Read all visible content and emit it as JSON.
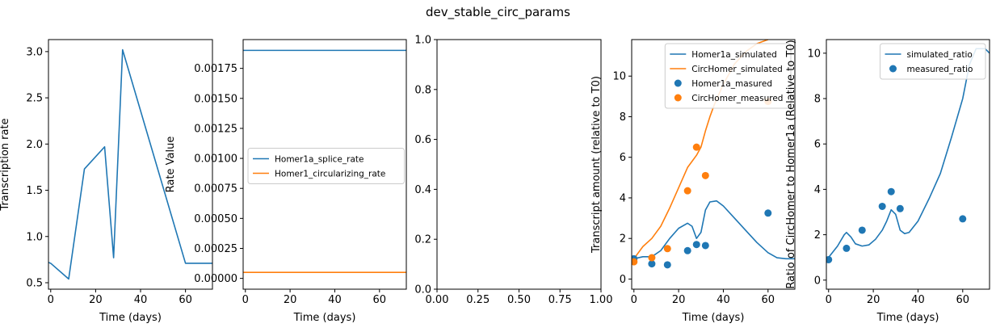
{
  "figure_title": "dev_stable_circ_params",
  "colors": {
    "blue": "#1f77b4",
    "orange": "#ff7f0e",
    "axis": "#000000"
  },
  "chart_data": [
    {
      "type": "line",
      "xlabel": "Time (days)",
      "ylabel": "Transcription rate",
      "xlim": [
        -1,
        72
      ],
      "ylim": [
        0.43,
        3.13
      ],
      "xticks": [
        0,
        20,
        40,
        60
      ],
      "yticks": [
        0.5,
        1.0,
        1.5,
        2.0,
        2.5,
        3.0
      ],
      "ytick_labels": [
        "0.5",
        "1.0",
        "1.5",
        "2.0",
        "2.5",
        "3.0"
      ],
      "series": [
        {
          "color": "#1f77b4",
          "x": [
            -1,
            0,
            8,
            15,
            24,
            28,
            32,
            60,
            72
          ],
          "y": [
            0.72,
            0.71,
            0.54,
            1.73,
            1.97,
            0.77,
            3.02,
            0.71,
            0.71
          ]
        }
      ]
    },
    {
      "type": "line",
      "xlabel": "Time (days)",
      "ylabel": "Rate Value",
      "xlim": [
        -1,
        72
      ],
      "ylim": [
        -9e-05,
        0.00199
      ],
      "xticks": [
        0,
        20,
        40,
        60
      ],
      "yticks": [
        0.0,
        0.00025,
        0.0005,
        0.00075,
        0.001,
        0.00125,
        0.0015,
        0.00175
      ],
      "ytick_labels": [
        "0.00000",
        "0.00025",
        "0.00050",
        "0.00075",
        "0.00100",
        "0.00125",
        "0.00150",
        "0.00175"
      ],
      "legend_position": "center",
      "series": [
        {
          "name": "Homer1a_splice_rate",
          "color": "#1f77b4",
          "x": [
            -1,
            72
          ],
          "y": [
            0.0019,
            0.0019
          ]
        },
        {
          "name": "Homer1_circularizing_rate",
          "color": "#ff7f0e",
          "x": [
            -1,
            72
          ],
          "y": [
            5e-05,
            5e-05
          ]
        }
      ]
    },
    {
      "type": "line",
      "xlabel": "",
      "ylabel": "",
      "xlim": [
        0,
        1
      ],
      "ylim": [
        0,
        1
      ],
      "xticks": [
        0,
        0.25,
        0.5,
        0.75,
        1.0
      ],
      "xtick_labels": [
        "0.00",
        "0.25",
        "0.50",
        "0.75",
        "1.00"
      ],
      "yticks": [
        0,
        0.2,
        0.4,
        0.6,
        0.8,
        1.0
      ],
      "ytick_labels": [
        "0.0",
        "0.2",
        "0.4",
        "0.6",
        "0.8",
        "1.0"
      ],
      "series": []
    },
    {
      "type": "line",
      "xlabel": "Time (days)",
      "ylabel": "Transcript amount (relative to T0)",
      "xlim": [
        -1,
        72
      ],
      "ylim": [
        -0.5,
        11.8
      ],
      "xticks": [
        0,
        20,
        40,
        60
      ],
      "yticks": [
        0,
        2,
        4,
        6,
        8,
        10
      ],
      "legend_position": "top-right",
      "series": [
        {
          "name": "Homer1a_simulated",
          "color": "#1f77b4",
          "kind": "line",
          "x": [
            0,
            4,
            8,
            12,
            16,
            20,
            24,
            26,
            28,
            30,
            32,
            34,
            37,
            40,
            45,
            50,
            55,
            60,
            64,
            68,
            72
          ],
          "y": [
            1.0,
            1.1,
            1.1,
            1.4,
            2.0,
            2.5,
            2.75,
            2.6,
            2.0,
            2.3,
            3.4,
            3.8,
            3.85,
            3.6,
            3.0,
            2.4,
            1.8,
            1.3,
            1.05,
            1.0,
            1.0
          ]
        },
        {
          "name": "CircHomer_simulated",
          "color": "#ff7f0e",
          "kind": "line",
          "x": [
            0,
            4,
            8,
            12,
            16,
            20,
            24,
            26,
            28,
            30,
            32,
            34,
            36,
            40,
            45,
            50,
            55,
            60
          ],
          "y": [
            1.0,
            1.6,
            2.0,
            2.6,
            3.5,
            4.5,
            5.5,
            5.8,
            6.1,
            6.5,
            7.3,
            8.0,
            8.6,
            9.6,
            10.6,
            11.2,
            11.6,
            11.8
          ]
        },
        {
          "name": "Homer1a_masured",
          "color": "#1f77b4",
          "kind": "scatter",
          "x": [
            0,
            8,
            15,
            24,
            28,
            32,
            60
          ],
          "y": [
            1.0,
            0.75,
            0.7,
            1.4,
            1.7,
            1.65,
            3.25
          ]
        },
        {
          "name": "CircHomer_measured",
          "color": "#ff7f0e",
          "kind": "scatter",
          "x": [
            0,
            8,
            15,
            24,
            28,
            32,
            60
          ],
          "y": [
            0.85,
            1.05,
            1.5,
            4.35,
            6.5,
            5.1,
            8.75
          ]
        }
      ]
    },
    {
      "type": "line",
      "xlabel": "Time (days)",
      "ylabel": "Ratio of CircHomer to Homer1a (Relative to T0)",
      "xlim": [
        -1,
        72
      ],
      "ylim": [
        -0.4,
        10.6
      ],
      "xticks": [
        0,
        20,
        40,
        60
      ],
      "yticks": [
        0,
        2,
        4,
        6,
        8,
        10
      ],
      "legend_position": "top-right",
      "series": [
        {
          "name": "simulated_ratio",
          "color": "#1f77b4",
          "kind": "line",
          "x": [
            0,
            4,
            7,
            8,
            10,
            12,
            15,
            18,
            21,
            24,
            26,
            28,
            30,
            32,
            34,
            36,
            40,
            45,
            50,
            55,
            60,
            63,
            66,
            70,
            72
          ],
          "y": [
            1.0,
            1.5,
            2.0,
            2.1,
            1.9,
            1.6,
            1.5,
            1.55,
            1.8,
            2.2,
            2.6,
            3.1,
            2.9,
            2.2,
            2.05,
            2.1,
            2.6,
            3.6,
            4.7,
            6.3,
            8.0,
            9.5,
            10.2,
            10.2,
            10.0
          ]
        },
        {
          "name": "measured_ratio",
          "color": "#1f77b4",
          "kind": "scatter",
          "x": [
            0,
            8,
            15,
            24,
            28,
            32,
            60
          ],
          "y": [
            0.9,
            1.4,
            2.2,
            3.25,
            3.9,
            3.15,
            2.7
          ]
        }
      ]
    }
  ]
}
